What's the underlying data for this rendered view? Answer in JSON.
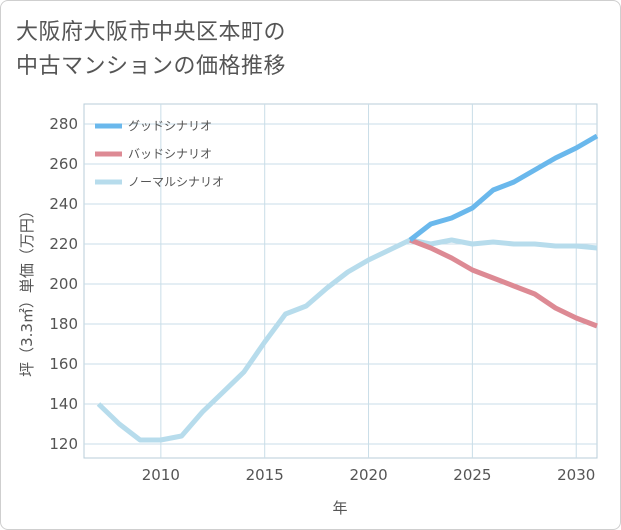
{
  "title_lines": [
    "大阪府大阪市中央区本町の",
    "中古マンションの価格推移"
  ],
  "chart_data": {
    "type": "line",
    "title": "大阪府大阪市中央区本町の中古マンションの価格推移",
    "xlabel": "年",
    "ylabel": "坪（3.3㎡）単価（万円）",
    "xlim": [
      2006.3,
      2031
    ],
    "ylim": [
      113,
      290
    ],
    "xticks": [
      2010,
      2015,
      2020,
      2025,
      2030
    ],
    "yticks": [
      120,
      140,
      160,
      180,
      200,
      220,
      240,
      260,
      280
    ],
    "grid": true,
    "legend_position": "top-left",
    "series": [
      {
        "name": "グッドシナリオ",
        "color": "#6ab8ec",
        "x": [
          2022,
          2023,
          2024,
          2025,
          2026,
          2027,
          2028,
          2029,
          2030,
          2031
        ],
        "y": [
          222,
          230,
          233,
          238,
          247,
          251,
          257,
          263,
          268,
          274
        ]
      },
      {
        "name": "バッドシナリオ",
        "color": "#dd8a94",
        "x": [
          2022,
          2023,
          2024,
          2025,
          2026,
          2027,
          2028,
          2029,
          2030,
          2031
        ],
        "y": [
          222,
          218,
          213,
          207,
          203,
          199,
          195,
          188,
          183,
          179
        ]
      },
      {
        "name": "ノーマルシナリオ",
        "color": "#b7dcec",
        "x": [
          2007,
          2008,
          2009,
          2010,
          2011,
          2012,
          2013,
          2014,
          2015,
          2016,
          2017,
          2018,
          2019,
          2020,
          2021,
          2022,
          2023,
          2024,
          2025,
          2026,
          2027,
          2028,
          2029,
          2030,
          2031
        ],
        "y": [
          140,
          130,
          122,
          122,
          124,
          136,
          146,
          156,
          171,
          185,
          189,
          198,
          206,
          212,
          217,
          222,
          220,
          222,
          220,
          221,
          220,
          220,
          219,
          219,
          218
        ]
      }
    ]
  }
}
